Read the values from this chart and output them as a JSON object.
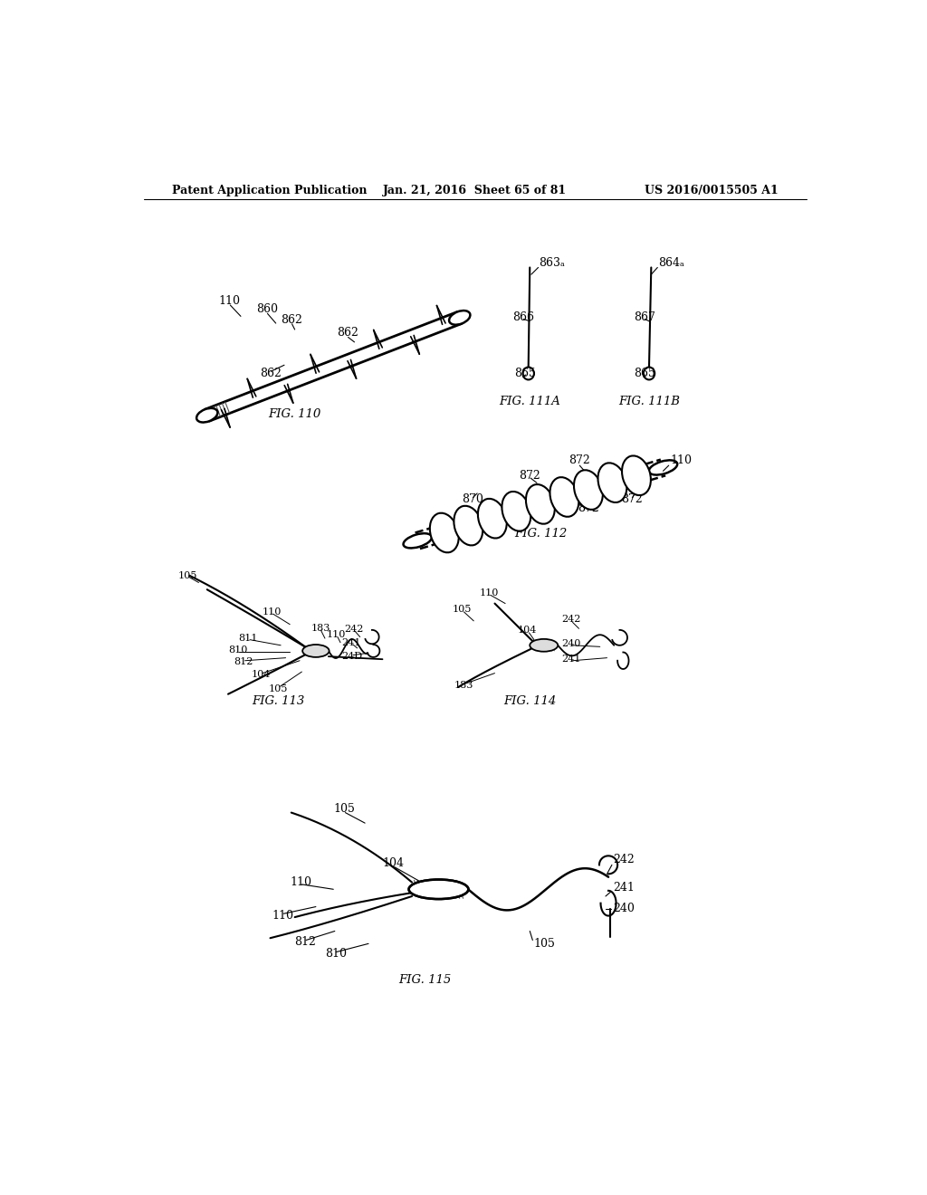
{
  "bg_color": "#ffffff",
  "header_left": "Patent Application Publication",
  "header_center": "Jan. 21, 2016  Sheet 65 of 81",
  "header_right": "US 2016/0015505 A1",
  "fig110_label": "FIG. 110",
  "fig111a_label": "FIG. 111A",
  "fig111b_label": "FIG. 111B",
  "fig112_label": "FIG. 112",
  "fig113_label": "FIG. 113",
  "fig114_label": "FIG. 114",
  "fig115_label": "FIG. 115"
}
